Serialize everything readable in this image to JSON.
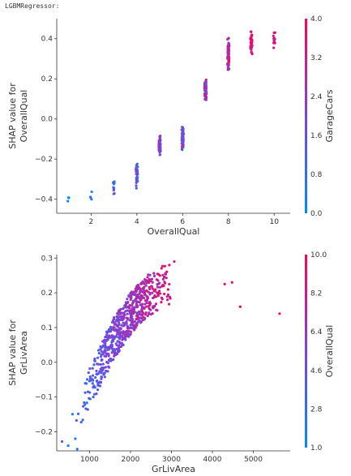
{
  "header": {
    "text": "LGBMRegressor:"
  },
  "chart_data": [
    {
      "type": "scatter",
      "title": "",
      "xlabel": "OverallQual",
      "ylabel_lines": [
        "SHAP value for",
        "OverallQual"
      ],
      "xlim": [
        0.5,
        10.7
      ],
      "ylim": [
        -0.47,
        0.5
      ],
      "xticks": [
        2,
        4,
        6,
        8,
        10
      ],
      "yticks": [
        -0.4,
        -0.2,
        0.0,
        0.2,
        0.4
      ],
      "xtick_labels": [
        "2",
        "4",
        "6",
        "8",
        "10"
      ],
      "ytick_labels": [
        "−0.4",
        "−0.2",
        "0.0",
        "0.2",
        "0.4"
      ],
      "colorbar": {
        "label": "GarageCars",
        "range": [
          0.0,
          4.0
        ],
        "ticks": [
          0.0,
          0.8,
          1.6,
          2.4,
          3.2,
          4.0
        ],
        "tick_labels": [
          "0.0",
          "0.8",
          "1.6",
          "2.4",
          "3.2",
          "4.0"
        ],
        "colors": [
          "#008afb",
          "#7a45dd",
          "#ff0052"
        ]
      },
      "clusters": [
        {
          "x": 1,
          "ymin": -0.42,
          "ymax": -0.38,
          "cmin": 0.0,
          "cmax": 0.3,
          "n": 3
        },
        {
          "x": 2,
          "ymin": -0.42,
          "ymax": -0.36,
          "cmin": 0.0,
          "cmax": 1.0,
          "n": 4
        },
        {
          "x": 3,
          "ymin": -0.39,
          "ymax": -0.29,
          "cmin": 0.2,
          "cmax": 2.0,
          "n": 12
        },
        {
          "x": 4,
          "ymin": -0.35,
          "ymax": -0.2,
          "cmin": 0.5,
          "cmax": 2.2,
          "n": 40
        },
        {
          "x": 5,
          "ymin": -0.19,
          "ymax": -0.08,
          "cmin": 0.8,
          "cmax": 2.8,
          "n": 60
        },
        {
          "x": 6,
          "ymin": -0.16,
          "ymax": -0.03,
          "cmin": 1.0,
          "cmax": 3.0,
          "n": 60
        },
        {
          "x": 7,
          "ymin": 0.08,
          "ymax": 0.21,
          "cmin": 1.6,
          "cmax": 3.4,
          "n": 60
        },
        {
          "x": 8,
          "ymin": 0.23,
          "ymax": 0.41,
          "cmin": 2.2,
          "cmax": 4.0,
          "n": 60
        },
        {
          "x": 9,
          "ymin": 0.31,
          "ymax": 0.45,
          "cmin": 2.8,
          "cmax": 4.0,
          "n": 40
        },
        {
          "x": 10,
          "ymin": 0.33,
          "ymax": 0.45,
          "cmin": 3.0,
          "cmax": 4.0,
          "n": 14
        }
      ]
    },
    {
      "type": "scatter",
      "title": "",
      "xlabel": "GrLivArea",
      "ylabel_lines": [
        "SHAP value for",
        "GrLivArea"
      ],
      "xlim": [
        200,
        5900
      ],
      "ylim": [
        -0.255,
        0.31
      ],
      "xticks": [
        1000,
        2000,
        3000,
        4000,
        5000
      ],
      "yticks": [
        -0.2,
        -0.1,
        0.0,
        0.1,
        0.2,
        0.3
      ],
      "xtick_labels": [
        "1000",
        "2000",
        "3000",
        "4000",
        "5000"
      ],
      "ytick_labels": [
        "−0.2",
        "−0.1",
        "0.0",
        "0.1",
        "0.2",
        "0.3"
      ],
      "colorbar": {
        "label": "OverallQual",
        "range": [
          1.0,
          10.0
        ],
        "ticks": [
          1.0,
          2.8,
          4.6,
          6.4,
          8.2,
          10.0
        ],
        "tick_labels": [
          "1.0",
          "2.8",
          "4.6",
          "6.4",
          "8.2",
          "10.0"
        ],
        "colors": [
          "#008afb",
          "#7a45dd",
          "#ff0052"
        ]
      },
      "trend": {
        "x": [
          350,
          700,
          1000,
          1300,
          1600,
          2000,
          2400,
          2800,
          3200
        ],
        "y": [
          -0.23,
          -0.16,
          -0.08,
          0.0,
          0.07,
          0.14,
          0.19,
          0.22,
          0.24
        ],
        "spread": 0.06,
        "count": 650
      },
      "outliers": [
        {
          "x": 4300,
          "y": 0.225,
          "c": 9
        },
        {
          "x": 4480,
          "y": 0.23,
          "c": 9
        },
        {
          "x": 4680,
          "y": 0.16,
          "c": 10
        },
        {
          "x": 5640,
          "y": 0.14,
          "c": 10
        },
        {
          "x": 330,
          "y": -0.228,
          "c": 4
        },
        {
          "x": 480,
          "y": -0.24,
          "c": 2
        },
        {
          "x": 700,
          "y": -0.25,
          "c": 2
        }
      ]
    }
  ]
}
